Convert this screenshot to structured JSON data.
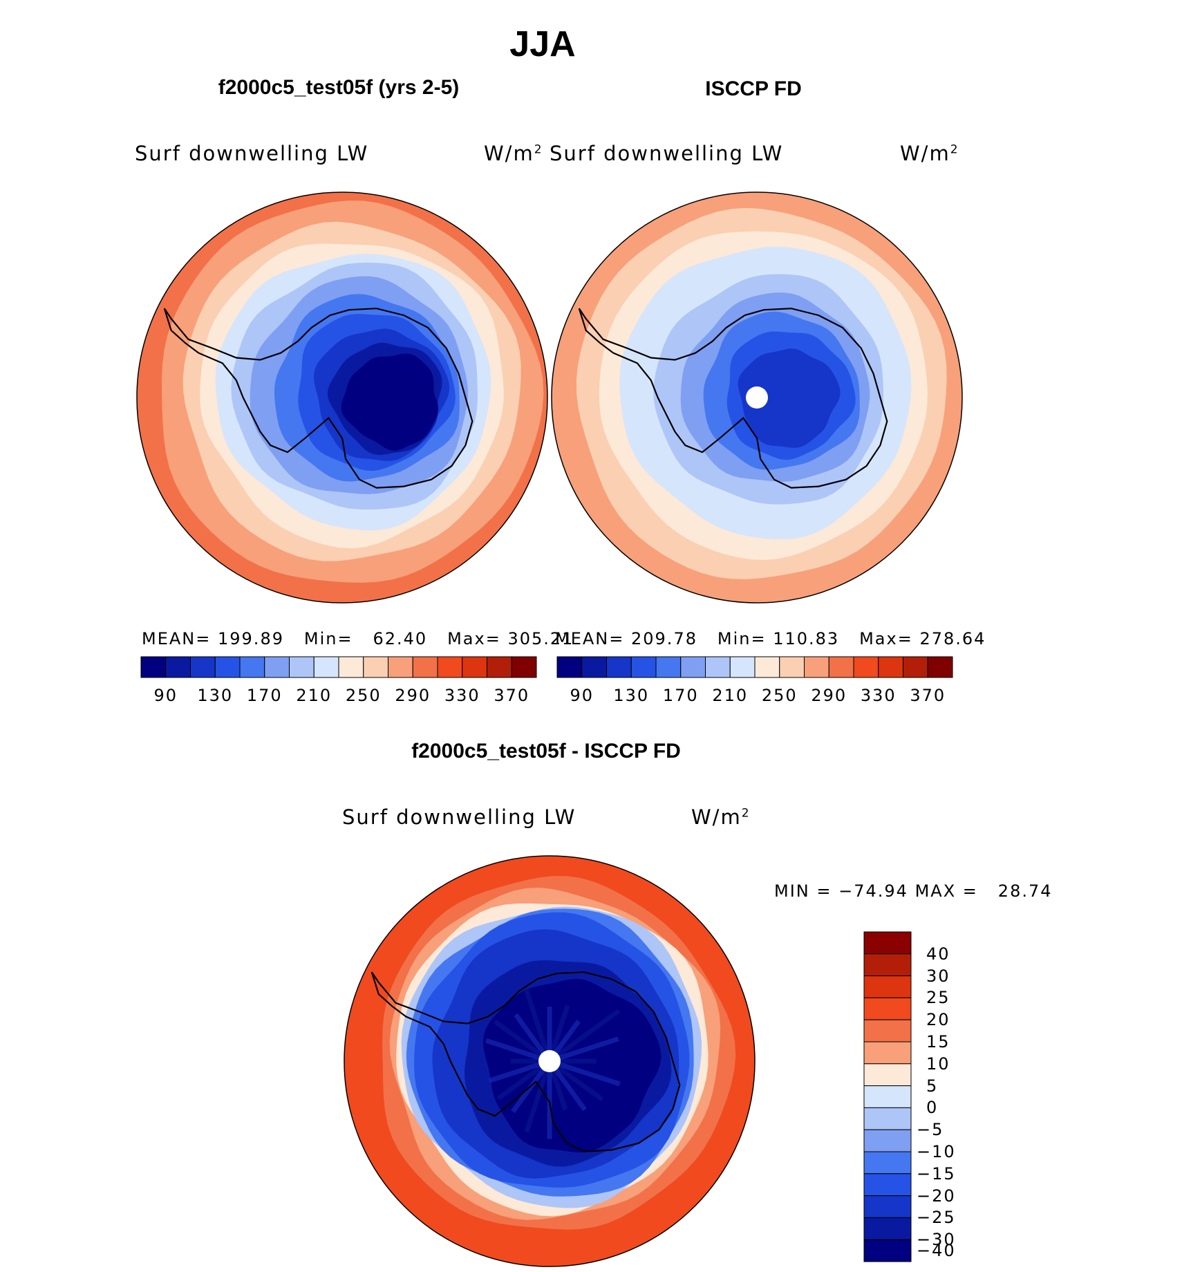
{
  "header": {
    "title": "JJA"
  },
  "panels": [
    {
      "id": "model",
      "subtitle": "f2000c5_test05f (yrs 2-5)",
      "variable": "Surf  downwelling  LW",
      "units": "W/m",
      "units_sup": "2",
      "stats": {
        "mean_label": "MEAN=",
        "mean": "199.89",
        "min_label": "Min=",
        "min": "62.40",
        "max_label": "Max=",
        "max": "305.21"
      }
    },
    {
      "id": "obs",
      "subtitle": "ISCCP FD",
      "variable": "Surf  downwelling  LW",
      "units": "W/m",
      "units_sup": "2",
      "stats": {
        "mean_label": "MEAN=",
        "mean": "209.78",
        "min_label": "Min=",
        "min": "110.83",
        "max_label": "Max=",
        "max": "278.64"
      }
    },
    {
      "id": "diff",
      "subtitle": "f2000c5_test05f - ISCCP FD",
      "variable": "Surf  downwelling  LW",
      "units": "W/m",
      "units_sup": "2",
      "stats": {
        "min_label": "MIN =",
        "min": "−74.94",
        "max_label": "MAX =",
        "max": "28.74"
      }
    }
  ],
  "colorbars": {
    "abs": {
      "colors": [
        "#000080",
        "#0a1aa0",
        "#1536c8",
        "#2553e6",
        "#4577f0",
        "#7f9ff2",
        "#aec5f8",
        "#d5e5fb",
        "#fde9d8",
        "#fbcfb2",
        "#f7a07a",
        "#f27148",
        "#f04a1e",
        "#dc3510",
        "#b31e09",
        "#800000"
      ],
      "tick_labels": [
        "90",
        "130",
        "170",
        "210",
        "250",
        "290",
        "330",
        "370"
      ]
    },
    "diff": {
      "colors": [
        "#8b0000",
        "#b31e09",
        "#dc3510",
        "#f04a1e",
        "#f27148",
        "#f7a07a",
        "#fde9d8",
        "#d5e5fb",
        "#aec5f8",
        "#7f9ff2",
        "#4577f0",
        "#2553e6",
        "#1536c8",
        "#0a1aa0",
        "#000080"
      ],
      "tick_labels": [
        "40",
        "30",
        "25",
        "20",
        "15",
        "10",
        "5",
        "0",
        "−5",
        "−10",
        "−15",
        "−20",
        "−25",
        "−30",
        "−40"
      ]
    }
  },
  "chart_data": [
    {
      "type": "heatmap",
      "title": "f2000c5_test05f (yrs 2-5)",
      "variable": "Surf  downwelling  LW",
      "units": "W/m2",
      "projection": "south polar stereographic",
      "mean": 199.89,
      "min": 62.4,
      "max": 305.21,
      "contour_levels": [
        90,
        110,
        130,
        150,
        170,
        190,
        210,
        230,
        250,
        270,
        290,
        310,
        330,
        350,
        370
      ],
      "colors": {
        "ocean_outer": "#f04a1e",
        "interior": "#000080"
      }
    },
    {
      "type": "heatmap",
      "title": "ISCCP FD",
      "variable": "Surf  downwelling  LW",
      "units": "W/m2",
      "projection": "south polar stereographic",
      "mean": 209.78,
      "min": 110.83,
      "max": 278.64,
      "contour_levels": [
        90,
        110,
        130,
        150,
        170,
        190,
        210,
        230,
        250,
        270,
        290,
        310,
        330,
        350,
        370
      ]
    },
    {
      "type": "heatmap",
      "title": "f2000c5_test05f - ISCCP FD",
      "variable": "Surf  downwelling  LW",
      "units": "W/m2",
      "projection": "south polar stereographic",
      "min": -74.94,
      "max": 28.74,
      "contour_levels": [
        -40,
        -30,
        -25,
        -20,
        -15,
        -10,
        -5,
        0,
        5,
        10,
        15,
        20,
        25,
        30,
        40
      ]
    }
  ]
}
